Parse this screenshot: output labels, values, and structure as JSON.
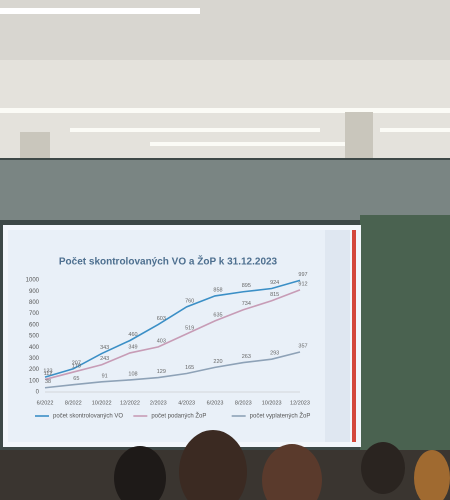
{
  "chart_data": {
    "type": "line",
    "title": "Počet skontrolovaných VO a ŽoP k 31.12.2023",
    "categories": [
      "6/2022",
      "8/2022",
      "10/2022",
      "12/2022",
      "2/2023",
      "4/2023",
      "6/2023",
      "8/2023",
      "10/2023",
      "12/2023"
    ],
    "series": [
      {
        "name": "počet skontrolovaných VO",
        "color": "#3b8fc6",
        "values": [
          133,
          207,
          343,
          460,
          603,
          760,
          858,
          895,
          924,
          997
        ]
      },
      {
        "name": "počet podaných ŽoP",
        "color": "#c79cb6",
        "values": [
          112,
          178,
          243,
          349,
          403,
          519,
          635,
          734,
          815,
          912
        ]
      },
      {
        "name": "počet vyplatených ŽoP",
        "color": "#8ea2b7",
        "values": [
          38,
          65,
          91,
          108,
          129,
          165,
          220,
          263,
          293,
          357
        ]
      }
    ],
    "ylim": [
      0,
      1000
    ],
    "yticks": [
      0,
      100,
      200,
      300,
      400,
      500,
      600,
      700,
      800,
      900,
      1000
    ],
    "grid": false,
    "legend": "bottom"
  }
}
